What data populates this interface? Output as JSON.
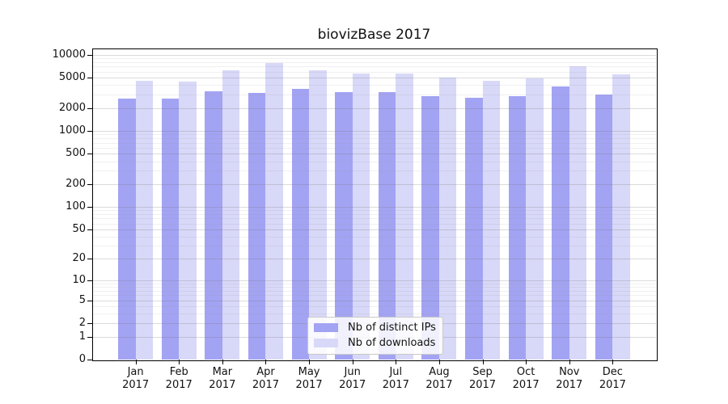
{
  "chart_data": {
    "type": "bar",
    "title": "biovizBase 2017",
    "x": [
      "Jan",
      "Feb",
      "Mar",
      "Apr",
      "May",
      "Jun",
      "Jul",
      "Aug",
      "Sep",
      "Oct",
      "Nov",
      "Dec"
    ],
    "x_year": "2017",
    "series": [
      {
        "name": "Nb of distinct IPs",
        "slug": "distinct-ips",
        "color": "#a3a3f3",
        "values": [
          2630,
          2670,
          3330,
          3190,
          3580,
          3270,
          3220,
          2870,
          2760,
          2890,
          3820,
          3040
        ]
      },
      {
        "name": "Nb of downloads",
        "slug": "downloads",
        "color": "#d8d8f8",
        "values": [
          4600,
          4470,
          6230,
          7840,
          6250,
          5610,
          5740,
          5040,
          4570,
          4960,
          7100,
          5600
        ]
      }
    ],
    "y_axis": {
      "scale": "log1p",
      "labeled_ticks": [
        0,
        1,
        2,
        5,
        10,
        20,
        50,
        100,
        200,
        500,
        1000,
        2000,
        5000,
        10000
      ],
      "minor_ticks": [
        3,
        4,
        6,
        7,
        8,
        9,
        30,
        40,
        60,
        70,
        80,
        90,
        300,
        400,
        600,
        700,
        800,
        900,
        3000,
        4000,
        6000,
        7000,
        8000,
        9000
      ],
      "axis_top_value": 12100,
      "axis_bottom_value": 0
    },
    "legend": {
      "position": "bottom-center",
      "entries": [
        "Nb of distinct IPs",
        "Nb of downloads"
      ]
    },
    "grid": true
  },
  "colors": {
    "background": "#ffffff",
    "axis": "#000000",
    "major_grid": "#dcdcdc",
    "minor_grid": "#ebebeb",
    "text": "#111111"
  }
}
